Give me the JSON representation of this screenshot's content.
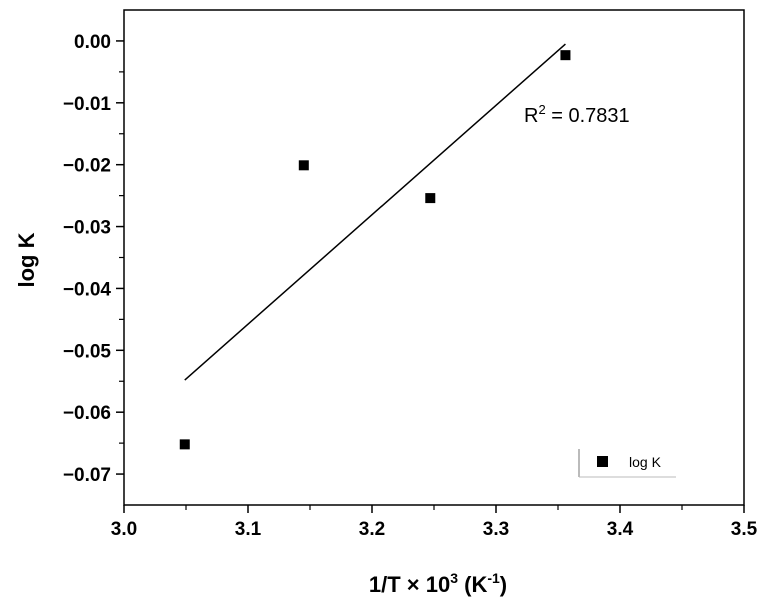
{
  "chart_data": {
    "type": "scatter",
    "title": "",
    "xlabel": {
      "main": "1/T × 10",
      "exponent": "3",
      "unit_open": " (K",
      "unit_exponent": "-1",
      "unit_close": ")"
    },
    "ylabel": "log K",
    "xlim": [
      3.0,
      3.5
    ],
    "ylim": [
      -0.075,
      0.005
    ],
    "x_ticks": [
      3.0,
      3.1,
      3.2,
      3.3,
      3.4,
      3.5
    ],
    "x_tick_labels": [
      "3.0",
      "3.1",
      "3.2",
      "3.3",
      "3.4",
      "3.5"
    ],
    "y_ticks": [
      0.0,
      -0.01,
      -0.02,
      -0.03,
      -0.04,
      -0.05,
      -0.06,
      -0.07
    ],
    "y_tick_labels": [
      "0.00",
      "-0.01",
      "-0.02",
      "-0.03",
      "-0.04",
      "-0.05",
      "-0.06",
      "-0.07"
    ],
    "grid": false,
    "legend_position": "bottom-right",
    "series": [
      {
        "name": "log K",
        "marker": "square",
        "color": "#000000",
        "x": [
          3.049,
          3.145,
          3.247,
          3.356
        ],
        "y": [
          -0.0652,
          -0.0201,
          -0.0254,
          -0.0023
        ]
      }
    ],
    "fit_line": {
      "x": [
        3.049,
        3.356
      ],
      "y": [
        -0.0548,
        -0.0005
      ],
      "color": "#000000"
    },
    "annotation": {
      "prefix": "R",
      "exponent": "2",
      "suffix": " = 0.7831"
    }
  }
}
